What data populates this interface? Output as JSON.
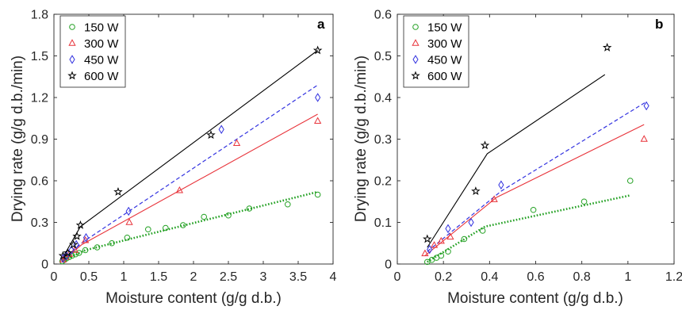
{
  "figure": {
    "y_title": "Drying rate (g/g d.b./min)",
    "x_title": "Moisture content (g/g d.b.)"
  },
  "chart_data": [
    {
      "type": "scatter",
      "panel_label": "a",
      "xlabel": "Moisture content (g/g d.b.)",
      "ylabel": "Drying rate (g/g d.b./min)",
      "xlim": [
        0,
        4
      ],
      "ylim": [
        0,
        1.8
      ],
      "xticks": [
        "0",
        "0.5",
        "1",
        "1.5",
        "2",
        "2.5",
        "3",
        "3.5",
        "4"
      ],
      "yticks": [
        "0",
        "0.3",
        "0.6",
        "0.9",
        "1.2",
        "1.5",
        "1.8"
      ],
      "grid": false,
      "legend_position": "top-left",
      "series": [
        {
          "name": "150 W",
          "color": "#22a022",
          "marker": "circle",
          "line_style": "dotted",
          "points": [
            [
              0.12,
              0.02
            ],
            [
              0.15,
              0.03
            ],
            [
              0.18,
              0.04
            ],
            [
              0.22,
              0.05
            ],
            [
              0.26,
              0.06
            ],
            [
              0.31,
              0.07
            ],
            [
              0.36,
              0.08
            ],
            [
              0.45,
              0.1
            ],
            [
              0.62,
              0.12
            ],
            [
              0.83,
              0.15
            ],
            [
              1.05,
              0.19
            ],
            [
              1.35,
              0.25
            ],
            [
              1.6,
              0.26
            ],
            [
              1.85,
              0.28
            ],
            [
              2.15,
              0.34
            ],
            [
              2.5,
              0.35
            ],
            [
              2.8,
              0.4
            ],
            [
              3.35,
              0.43
            ],
            [
              3.78,
              0.5
            ]
          ],
          "fit": [
            [
              0.12,
              0.02
            ],
            [
              0.45,
              0.1
            ],
            [
              3.78,
              0.52
            ]
          ]
        },
        {
          "name": "300 W",
          "color": "#e8333a",
          "marker": "triangle",
          "line_style": "solid",
          "points": [
            [
              0.13,
              0.03
            ],
            [
              0.17,
              0.05
            ],
            [
              0.22,
              0.07
            ],
            [
              0.3,
              0.1
            ],
            [
              0.45,
              0.17
            ],
            [
              1.08,
              0.3
            ],
            [
              1.8,
              0.53
            ],
            [
              2.62,
              0.87
            ],
            [
              3.78,
              1.03
            ]
          ],
          "fit": [
            [
              0.12,
              0.02
            ],
            [
              0.4,
              0.14
            ],
            [
              3.78,
              1.08
            ]
          ]
        },
        {
          "name": "450 W",
          "color": "#3333e0",
          "marker": "diamond",
          "line_style": "dashed",
          "points": [
            [
              0.13,
              0.04
            ],
            [
              0.18,
              0.06
            ],
            [
              0.25,
              0.1
            ],
            [
              0.32,
              0.14
            ],
            [
              0.46,
              0.19
            ],
            [
              1.07,
              0.38
            ],
            [
              2.4,
              0.97
            ],
            [
              3.78,
              1.2
            ]
          ],
          "fit": [
            [
              0.12,
              0.03
            ],
            [
              0.42,
              0.16
            ],
            [
              3.78,
              1.29
            ]
          ]
        },
        {
          "name": "600 W",
          "color": "#000000",
          "marker": "star",
          "line_style": "solid",
          "points": [
            [
              0.13,
              0.06
            ],
            [
              0.2,
              0.08
            ],
            [
              0.28,
              0.14
            ],
            [
              0.33,
              0.2
            ],
            [
              0.38,
              0.28
            ],
            [
              0.92,
              0.52
            ],
            [
              2.25,
              0.93
            ],
            [
              3.78,
              1.54
            ]
          ],
          "fit": [
            [
              0.12,
              0.04
            ],
            [
              0.38,
              0.27
            ],
            [
              3.78,
              1.54
            ]
          ]
        }
      ]
    },
    {
      "type": "scatter",
      "panel_label": "b",
      "xlabel": "Moisture content (g/g d.b.)",
      "ylabel": "Drying rate (g/g d.b./min)",
      "xlim": [
        0,
        1.2
      ],
      "ylim": [
        0,
        0.6
      ],
      "xticks": [
        "0",
        "0.2",
        "0.4",
        "0.6",
        "0.8",
        "1",
        "1.2"
      ],
      "yticks": [
        "0",
        "0.1",
        "0.2",
        "0.3",
        "0.4",
        "0.5",
        "0.6"
      ],
      "grid": false,
      "legend_position": "top-left",
      "series": [
        {
          "name": "150 W",
          "color": "#22a022",
          "marker": "circle",
          "line_style": "dotted",
          "points": [
            [
              0.13,
              0.005
            ],
            [
              0.15,
              0.01
            ],
            [
              0.17,
              0.015
            ],
            [
              0.19,
              0.02
            ],
            [
              0.22,
              0.03
            ],
            [
              0.29,
              0.06
            ],
            [
              0.37,
              0.08
            ],
            [
              0.59,
              0.13
            ],
            [
              0.81,
              0.15
            ],
            [
              1.01,
              0.2
            ]
          ],
          "fit": [
            [
              0.13,
              0.005
            ],
            [
              0.38,
              0.09
            ],
            [
              1.01,
              0.165
            ]
          ]
        },
        {
          "name": "300 W",
          "color": "#e8333a",
          "marker": "triangle",
          "line_style": "solid",
          "points": [
            [
              0.12,
              0.025
            ],
            [
              0.16,
              0.045
            ],
            [
              0.19,
              0.055
            ],
            [
              0.23,
              0.065
            ],
            [
              0.42,
              0.155
            ],
            [
              1.07,
              0.3
            ]
          ],
          "fit": [
            [
              0.12,
              0.02
            ],
            [
              0.43,
              0.16
            ],
            [
              1.07,
              0.335
            ]
          ]
        },
        {
          "name": "450 W",
          "color": "#3333e0",
          "marker": "diamond",
          "line_style": "dashed",
          "points": [
            [
              0.14,
              0.035
            ],
            [
              0.22,
              0.085
            ],
            [
              0.32,
              0.1
            ],
            [
              0.45,
              0.19
            ],
            [
              1.08,
              0.38
            ]
          ],
          "fit": [
            [
              0.13,
              0.03
            ],
            [
              0.45,
              0.175
            ],
            [
              1.08,
              0.39
            ]
          ]
        },
        {
          "name": "600 W",
          "color": "#000000",
          "marker": "star",
          "line_style": "solid",
          "points": [
            [
              0.13,
              0.06
            ],
            [
              0.34,
              0.175
            ],
            [
              0.38,
              0.285
            ],
            [
              0.91,
              0.52
            ]
          ],
          "fit": [
            [
              0.13,
              0.04
            ],
            [
              0.39,
              0.265
            ],
            [
              0.9,
              0.455
            ]
          ]
        }
      ]
    }
  ]
}
